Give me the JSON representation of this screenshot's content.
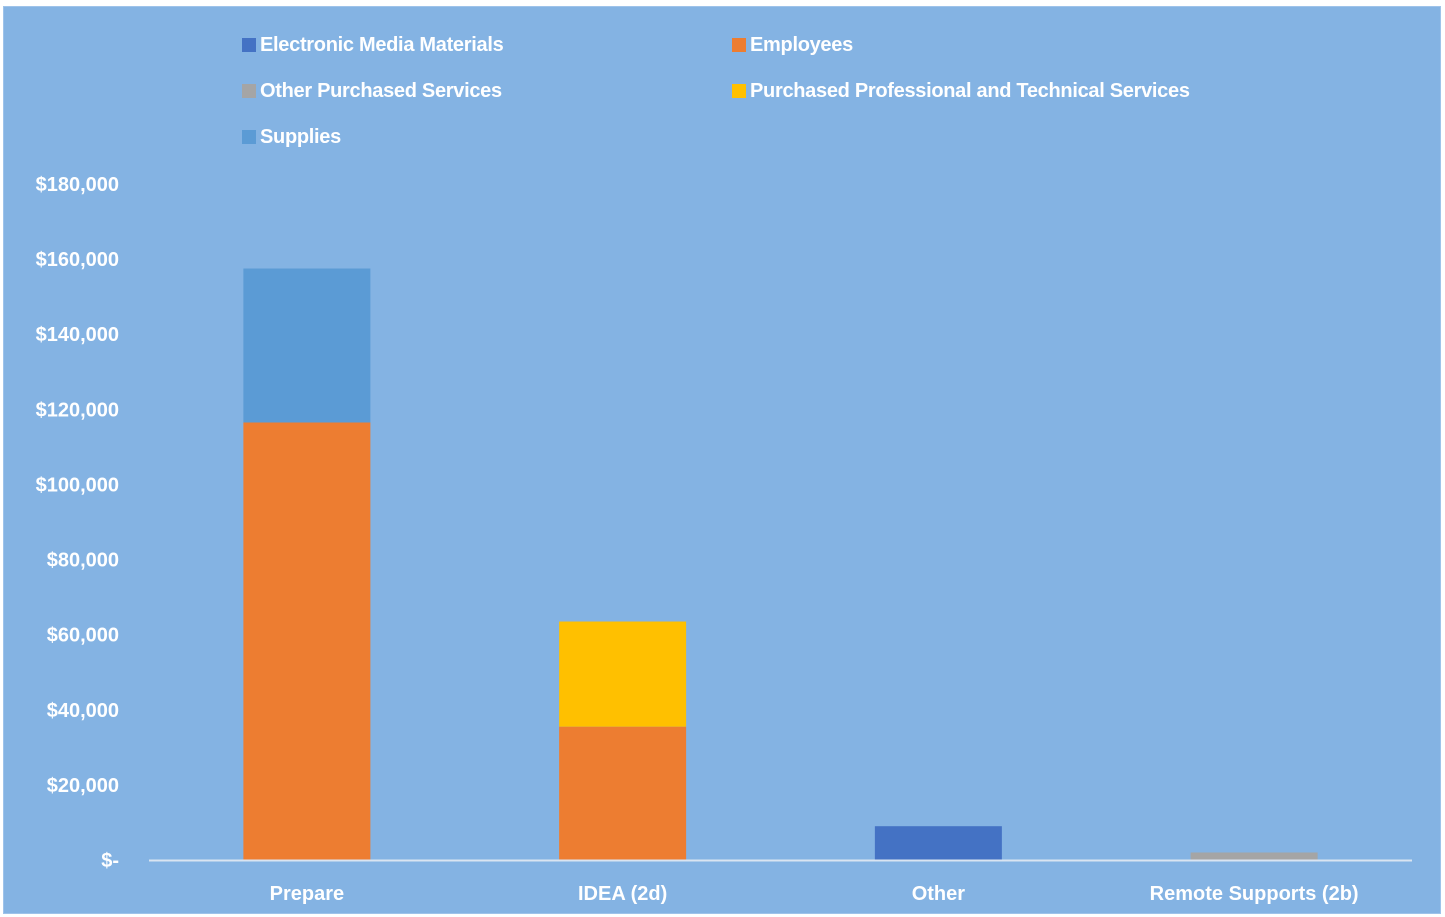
{
  "chart_data": {
    "type": "bar",
    "stacked": true,
    "title": "",
    "xlabel": "",
    "ylabel": "",
    "categories": [
      "Prepare",
      "IDEA (2d)",
      "Other",
      "Remote Supports (2b)"
    ],
    "series": [
      {
        "name": "Electronic Media Materials",
        "color": "#4472c4",
        "values": [
          0,
          0,
          9000,
          0
        ]
      },
      {
        "name": "Employees",
        "color": "#ed7d31",
        "values": [
          116500,
          35500,
          0,
          0
        ]
      },
      {
        "name": "Other Purchased Services",
        "color": "#a5a5a5",
        "values": [
          0,
          0,
          0,
          2000
        ]
      },
      {
        "name": "Purchased Professional and Technical Services",
        "color": "#ffc000",
        "values": [
          0,
          28000,
          0,
          0
        ]
      },
      {
        "name": "Supplies",
        "color": "#5b9bd5",
        "values": [
          41000,
          0,
          0,
          0
        ]
      }
    ],
    "ylim": [
      0,
      180000
    ],
    "ytick_labels": [
      "$-",
      "$20,000",
      "$40,000",
      "$60,000",
      "$80,000",
      "$100,000",
      "$120,000",
      "$140,000",
      "$160,000",
      "$180,000"
    ],
    "grid": false,
    "legend_position": "top",
    "background_color": "#84b3e3",
    "axis_line_color": "#d9e4f1"
  }
}
